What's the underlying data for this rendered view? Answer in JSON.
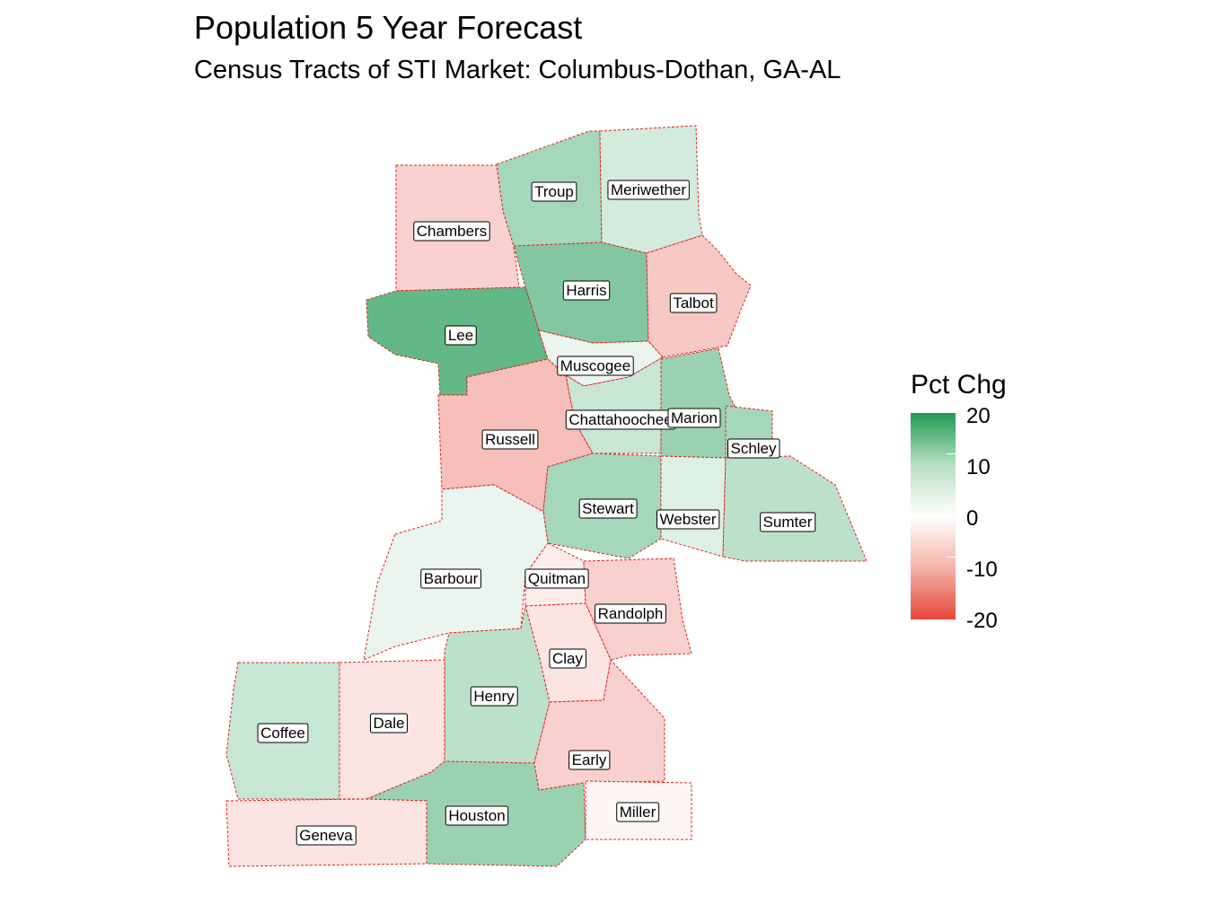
{
  "title": "Population 5 Year Forecast",
  "subtitle": "Census Tracts of STI Market: Columbus-Dothan,  GA-AL",
  "legend": {
    "title": "Pct Chg",
    "ticks": [
      "20",
      "10",
      "0",
      "-10",
      "-20"
    ],
    "colors": {
      "high": "#1e9a52",
      "mid": "#ffffff",
      "low": "#e4483a"
    },
    "range": [
      -20,
      20
    ]
  },
  "counties": [
    {
      "name": "Troup",
      "pct": 8
    },
    {
      "name": "Meriwether",
      "pct": 4
    },
    {
      "name": "Chambers",
      "pct": -5
    },
    {
      "name": "Harris",
      "pct": 11
    },
    {
      "name": "Talbot",
      "pct": -6
    },
    {
      "name": "Lee",
      "pct": 14
    },
    {
      "name": "Muscogee",
      "pct": 2
    },
    {
      "name": "Chattahoochee",
      "pct": 5
    },
    {
      "name": "Marion",
      "pct": 9
    },
    {
      "name": "Schley",
      "pct": 8
    },
    {
      "name": "Russell",
      "pct": -7
    },
    {
      "name": "Stewart",
      "pct": 8
    },
    {
      "name": "Webster",
      "pct": 3
    },
    {
      "name": "Sumter",
      "pct": 6
    },
    {
      "name": "Barbour",
      "pct": 2
    },
    {
      "name": "Quitman",
      "pct": -2
    },
    {
      "name": "Randolph",
      "pct": -5
    },
    {
      "name": "Clay",
      "pct": -3
    },
    {
      "name": "Henry",
      "pct": 6
    },
    {
      "name": "Coffee",
      "pct": 5
    },
    {
      "name": "Dale",
      "pct": -3
    },
    {
      "name": "Early",
      "pct": -5
    },
    {
      "name": "Houston",
      "pct": 9
    },
    {
      "name": "Miller",
      "pct": -1
    },
    {
      "name": "Geneva",
      "pct": -3
    }
  ]
}
